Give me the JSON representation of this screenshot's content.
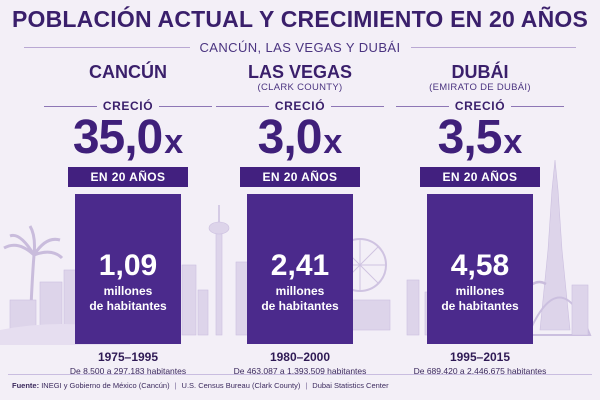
{
  "header": {
    "title": "POBLACIÓN ACTUAL Y CRECIMIENTO EN 20 AÑOS",
    "subtitle": "CANCÚN, LAS VEGAS Y DUBÁI"
  },
  "crecio_label": "CRECIÓ",
  "factor_suffix": "x",
  "period_label": "EN 20 AÑOS",
  "unit_line1": "millones",
  "unit_line2": "de habitantes",
  "cities": [
    {
      "name": "CANCÚN",
      "region": "",
      "factor": "35,0",
      "population_millions": "1,09",
      "years": "1975–1995",
      "range": "De 8.500 a 297.183 habitantes"
    },
    {
      "name": "LAS VEGAS",
      "region": "(CLARK COUNTY)",
      "factor": "3,0",
      "population_millions": "2,41",
      "years": "1980–2000",
      "range": "De 463.087 a 1.393.509 habitantes"
    },
    {
      "name": "DUBÁI",
      "region": "(EMIRATO DE DUBÁI)",
      "factor": "3,5",
      "population_millions": "4,58",
      "years": "1995–2015",
      "range": "De 689.420 a 2.446.675 habitantes"
    }
  ],
  "footer": {
    "label": "Fuente:",
    "sources": [
      "INEGI y Gobierno de México (Cancún)",
      "U.S. Census Bureau (Clark County)",
      "Dubai Statistics Center"
    ]
  },
  "colors": {
    "background": "#f3eff7",
    "primary": "#3a1f6b",
    "bar": "#4b2a8c",
    "badge": "#42207f",
    "skyline": "#d9d0e8"
  }
}
